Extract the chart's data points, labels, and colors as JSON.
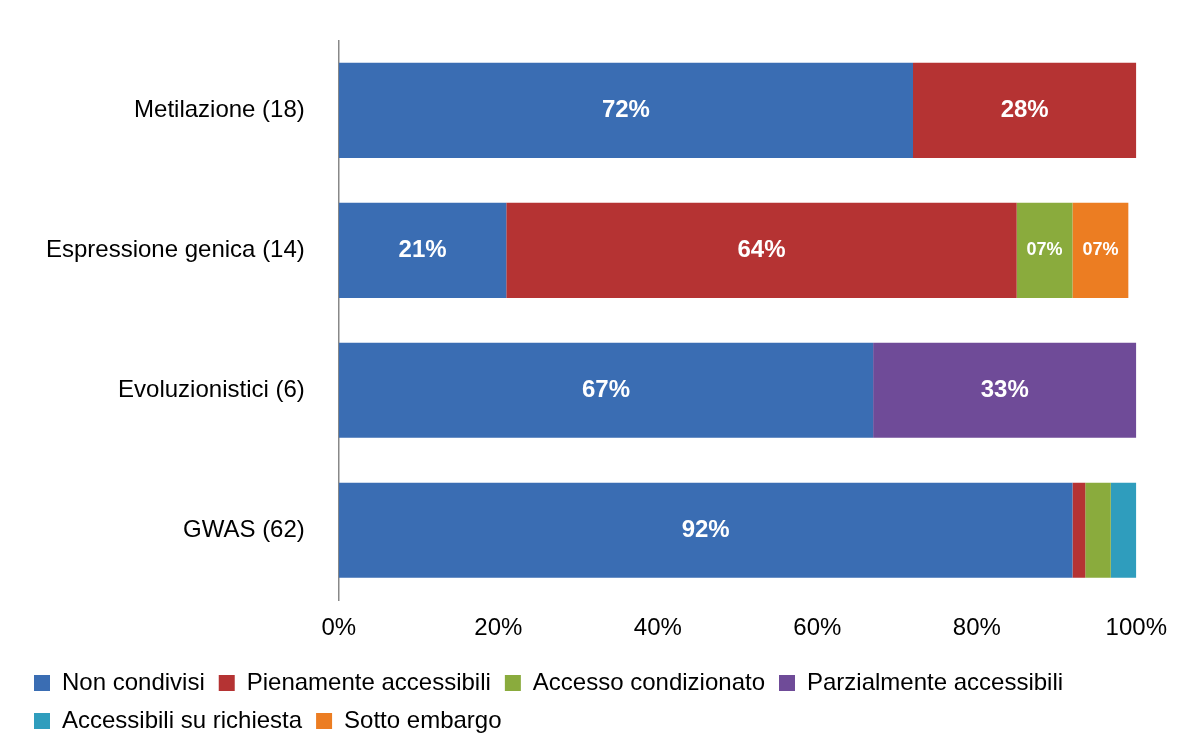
{
  "chart_data": {
    "type": "bar",
    "orientation": "horizontal",
    "stacked": true,
    "categories": [
      "Metilazione (18)",
      "Espressione genica (14)",
      "Evoluzionistici (6)",
      "GWAS (62)"
    ],
    "series": [
      {
        "name": "Non condivisi",
        "color": "#3a6db3",
        "values": [
          72,
          21,
          67,
          92
        ],
        "value_labels": [
          "72%",
          "21%",
          "67%",
          "92%"
        ]
      },
      {
        "name": "Pienamente accessibili",
        "color": "#b53333",
        "values": [
          28,
          64,
          null,
          1.6
        ],
        "value_labels": [
          "28%",
          "64%",
          null,
          null
        ]
      },
      {
        "name": "Accesso condizionato",
        "color": "#8aab3d",
        "values": [
          null,
          7,
          null,
          3.2
        ],
        "value_labels": [
          null,
          "07%",
          null,
          null
        ]
      },
      {
        "name": "Parzialmente accessibili",
        "color": "#6f4b98",
        "values": [
          null,
          null,
          33,
          null
        ],
        "value_labels": [
          null,
          null,
          "33%",
          null
        ]
      },
      {
        "name": "Accessibili su richiesta",
        "color": "#2f9dbd",
        "values": [
          null,
          null,
          null,
          3.2
        ],
        "value_labels": [
          null,
          null,
          null,
          null
        ]
      },
      {
        "name": "Sotto embargo",
        "color": "#ec7d22",
        "values": [
          null,
          7,
          null,
          null
        ],
        "value_labels": [
          null,
          "07%",
          null,
          null
        ]
      }
    ],
    "xlim": [
      0,
      100
    ],
    "xticks": [
      {
        "value": 0,
        "label": "0%"
      },
      {
        "value": 20,
        "label": "20%"
      },
      {
        "value": 40,
        "label": "40%"
      },
      {
        "value": 60,
        "label": "60%"
      },
      {
        "value": 80,
        "label": "80%"
      },
      {
        "value": 100,
        "label": "100%"
      }
    ],
    "grid": false,
    "legend": "bottom"
  }
}
